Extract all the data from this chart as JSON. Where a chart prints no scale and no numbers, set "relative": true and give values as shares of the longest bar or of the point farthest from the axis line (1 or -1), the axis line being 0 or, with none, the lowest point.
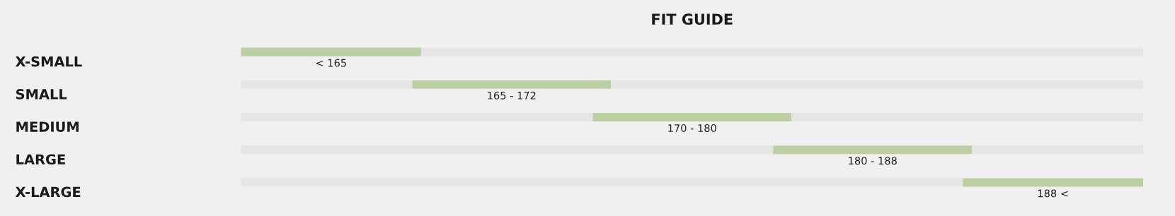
{
  "chart_data": {
    "type": "bar",
    "orientation": "horizontal",
    "relative": true,
    "stacked": true,
    "title": "FIT GUIDE",
    "categories": [
      "X-SMALL",
      "SMALL",
      "MEDIUM",
      "LARGE",
      "X-LARGE"
    ],
    "series": [
      {
        "color": "#e5e5e5",
        "values": [
          0,
          0.19,
          0.39,
          0.59,
          0.8
        ]
      },
      {
        "color": "#bbcfa3",
        "values": [
          0.2,
          0.22,
          0.22,
          0.22,
          0.2
        ]
      },
      {
        "color": "#e5e5e5",
        "values": [
          0.8,
          0.59,
          0.39,
          0.19,
          0
        ]
      }
    ],
    "annotations": [
      "< 165",
      "165 - 172",
      "170 - 180",
      "180 - 188",
      "188 <"
    ]
  }
}
